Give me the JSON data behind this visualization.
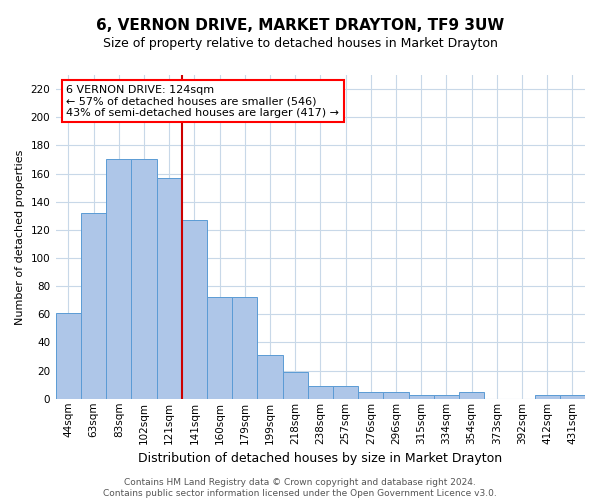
{
  "title": "6, VERNON DRIVE, MARKET DRAYTON, TF9 3UW",
  "subtitle": "Size of property relative to detached houses in Market Drayton",
  "xlabel": "Distribution of detached houses by size in Market Drayton",
  "ylabel": "Number of detached properties",
  "categories": [
    "44sqm",
    "63sqm",
    "83sqm",
    "102sqm",
    "121sqm",
    "141sqm",
    "160sqm",
    "179sqm",
    "199sqm",
    "218sqm",
    "238sqm",
    "257sqm",
    "276sqm",
    "296sqm",
    "315sqm",
    "334sqm",
    "354sqm",
    "373sqm",
    "392sqm",
    "412sqm",
    "431sqm"
  ],
  "values": [
    61,
    132,
    170,
    170,
    157,
    127,
    72,
    72,
    31,
    19,
    9,
    9,
    5,
    5,
    3,
    3,
    5,
    0,
    0,
    3,
    3
  ],
  "bar_color": "#aec6e8",
  "bar_edge_color": "#5b9bd5",
  "highlight_index": 4,
  "highlight_color": "#cc0000",
  "ylim": [
    0,
    230
  ],
  "yticks": [
    0,
    20,
    40,
    60,
    80,
    100,
    120,
    140,
    160,
    180,
    200,
    220
  ],
  "annotation_lines": [
    "6 VERNON DRIVE: 124sqm",
    "← 57% of detached houses are smaller (546)",
    "43% of semi-detached houses are larger (417) →"
  ],
  "footer_lines": [
    "Contains HM Land Registry data © Crown copyright and database right 2024.",
    "Contains public sector information licensed under the Open Government Licence v3.0."
  ],
  "background_color": "#ffffff",
  "grid_color": "#c8d8e8",
  "title_fontsize": 11,
  "subtitle_fontsize": 9,
  "ylabel_fontsize": 8,
  "xlabel_fontsize": 9,
  "tick_fontsize": 7.5,
  "footer_fontsize": 6.5,
  "ann_fontsize": 8
}
